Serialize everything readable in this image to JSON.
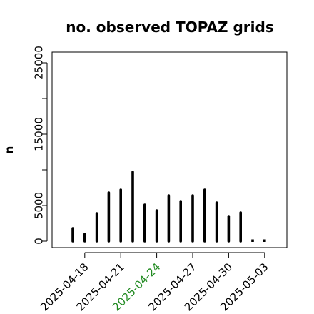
{
  "chart_data": {
    "type": "bar",
    "title": "no. observed TOPAZ grids",
    "ylabel": "n",
    "xlabel": "",
    "ylim": [
      -500,
      26800
    ],
    "yticks": [
      0,
      5000,
      10000,
      15000,
      20000,
      25000
    ],
    "ytick_labels": [
      "0",
      "5000",
      "",
      "15000",
      "",
      "25000"
    ],
    "x": [
      "2025-04-17",
      "2025-04-18",
      "2025-04-19",
      "2025-04-20",
      "2025-04-21",
      "2025-04-22",
      "2025-04-23",
      "2025-04-24",
      "2025-04-25",
      "2025-04-26",
      "2025-04-27",
      "2025-04-28",
      "2025-04-29",
      "2025-04-30",
      "2025-05-01",
      "2025-05-02",
      "2025-05-03"
    ],
    "values": [
      1800,
      1000,
      3900,
      6800,
      7200,
      9700,
      5100,
      4300,
      6400,
      5600,
      6400,
      7200,
      5400,
      3500,
      4000,
      150,
      150
    ],
    "xticks": [
      {
        "label": "2025-04-18",
        "color": "#000000"
      },
      {
        "label": "2025-04-21",
        "color": "#000000"
      },
      {
        "label": "2025-04-24",
        "color": "#228B22"
      },
      {
        "label": "2025-04-27",
        "color": "#000000"
      },
      {
        "label": "2025-04-30",
        "color": "#000000"
      },
      {
        "label": "2025-05-03",
        "color": "#000000"
      }
    ],
    "bar_color": "#000000",
    "highlight_color": "#228B22",
    "grid": false
  }
}
